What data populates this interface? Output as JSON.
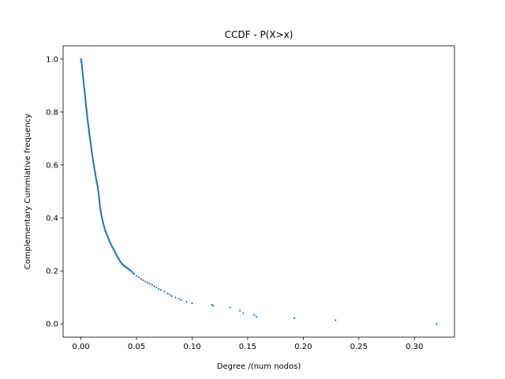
{
  "chart_data": {
    "type": "scatter",
    "title": "CCDF - P(X>x)",
    "xlabel": "Degree /(num nodos)",
    "ylabel": "Complementary Cummlative frequency",
    "xlim": [
      -0.016,
      0.336
    ],
    "ylim": [
      -0.05,
      1.05
    ],
    "xticks": [
      0.0,
      0.05,
      0.1,
      0.15,
      0.2,
      0.25,
      0.3
    ],
    "xtick_labels": [
      "0.00",
      "0.05",
      "0.10",
      "0.15",
      "0.20",
      "0.25",
      "0.30"
    ],
    "yticks": [
      0.0,
      0.2,
      0.4,
      0.6,
      0.8,
      1.0
    ],
    "ytick_labels": [
      "0.0",
      "0.2",
      "0.4",
      "0.6",
      "0.8",
      "1.0"
    ],
    "grid": false,
    "color": "#1f77b4",
    "series": [
      {
        "x": [
          0.0,
          0.0005,
          0.001,
          0.0015,
          0.002,
          0.0025,
          0.003,
          0.0035,
          0.004,
          0.0045,
          0.005,
          0.0055,
          0.006,
          0.0065,
          0.007,
          0.0075,
          0.008,
          0.0085,
          0.009,
          0.0095,
          0.01,
          0.011,
          0.012,
          0.013,
          0.014,
          0.015,
          0.016,
          0.0165,
          0.017,
          0.0175,
          0.018,
          0.0185,
          0.019,
          0.02,
          0.021,
          0.022,
          0.023,
          0.024,
          0.025,
          0.026,
          0.027,
          0.028,
          0.029,
          0.03,
          0.031,
          0.032,
          0.033,
          0.034,
          0.035,
          0.036,
          0.037,
          0.038,
          0.039,
          0.04,
          0.041,
          0.042,
          0.043,
          0.044,
          0.045,
          0.046,
          0.047,
          0.048,
          0.05,
          0.052,
          0.054,
          0.056,
          0.058,
          0.06,
          0.062,
          0.064,
          0.066,
          0.068,
          0.07,
          0.072,
          0.075,
          0.078,
          0.08,
          0.082,
          0.085,
          0.088,
          0.09,
          0.095,
          0.1,
          0.118,
          0.119,
          0.134,
          0.143,
          0.146,
          0.156,
          0.158,
          0.192,
          0.229,
          0.32
        ],
        "y": [
          1.0,
          0.99,
          0.97,
          0.95,
          0.93,
          0.91,
          0.89,
          0.87,
          0.85,
          0.83,
          0.81,
          0.79,
          0.77,
          0.755,
          0.74,
          0.72,
          0.705,
          0.69,
          0.675,
          0.66,
          0.645,
          0.615,
          0.59,
          0.565,
          0.54,
          0.52,
          0.49,
          0.47,
          0.45,
          0.435,
          0.42,
          0.41,
          0.4,
          0.38,
          0.365,
          0.35,
          0.34,
          0.33,
          0.32,
          0.31,
          0.3,
          0.292,
          0.285,
          0.277,
          0.268,
          0.26,
          0.252,
          0.245,
          0.238,
          0.232,
          0.227,
          0.222,
          0.219,
          0.216,
          0.213,
          0.21,
          0.207,
          0.203,
          0.2,
          0.196,
          0.192,
          0.188,
          0.182,
          0.176,
          0.17,
          0.165,
          0.16,
          0.156,
          0.152,
          0.148,
          0.142,
          0.138,
          0.132,
          0.128,
          0.122,
          0.115,
          0.11,
          0.105,
          0.1,
          0.095,
          0.09,
          0.083,
          0.078,
          0.072,
          0.068,
          0.062,
          0.05,
          0.04,
          0.033,
          0.027,
          0.022,
          0.014,
          0.0
        ]
      }
    ]
  }
}
